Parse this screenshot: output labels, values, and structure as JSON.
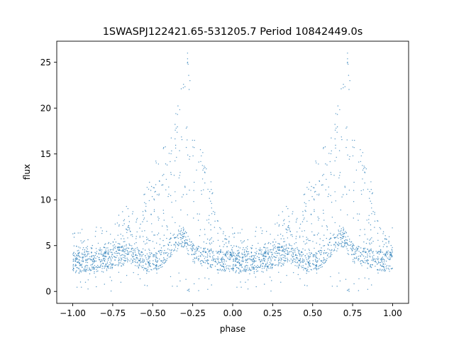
{
  "chart_data": {
    "type": "scatter",
    "title": "1SWASPJ122421.65-531205.7 Period 10842449.0s",
    "xlabel": "phase",
    "ylabel": "flux",
    "xlim": [
      -1.1,
      1.1
    ],
    "ylim": [
      -1.3,
      27.3
    ],
    "xticks": [
      -1.0,
      -0.75,
      -0.5,
      -0.25,
      0.0,
      0.25,
      0.5,
      0.75,
      1.0
    ],
    "xtick_labels": [
      "−1.00",
      "−0.75",
      "−0.50",
      "−0.25",
      "0.00",
      "0.25",
      "0.50",
      "0.75",
      "1.00"
    ],
    "yticks": [
      0,
      5,
      10,
      15,
      20,
      25
    ],
    "ytick_labels": [
      "0",
      "5",
      "10",
      "15",
      "20",
      "25"
    ],
    "grid": false,
    "legend": "none",
    "marker_color": "#1f77b4",
    "series": [
      {
        "phase_flux_profile": {
          "phase": [
            0.0,
            0.05,
            0.1,
            0.15,
            0.2,
            0.25,
            0.3,
            0.35,
            0.4,
            0.45,
            0.5,
            0.55,
            0.6,
            0.65,
            0.7,
            0.72,
            0.75,
            0.8,
            0.85,
            0.9,
            0.95,
            1.0
          ],
          "base_flux": [
            3.2,
            3.0,
            3.3,
            3.2,
            3.3,
            3.6,
            3.8,
            4.2,
            3.8,
            3.0,
            3.2,
            3.6,
            4.5,
            5.5,
            6.0,
            5.0,
            4.3,
            3.8,
            3.6,
            3.4,
            3.3,
            3.2
          ],
          "upper_flux": [
            5.2,
            4.8,
            4.8,
            5.0,
            5.2,
            5.5,
            6.5,
            7.5,
            6.5,
            9.0,
            12.0,
            13.0,
            15.0,
            18.0,
            22.0,
            25.5,
            16.0,
            14.5,
            11.0,
            8.0,
            6.0,
            5.0
          ]
        },
        "flux_max": 26.0,
        "flux_min": 0.0
      }
    ]
  }
}
